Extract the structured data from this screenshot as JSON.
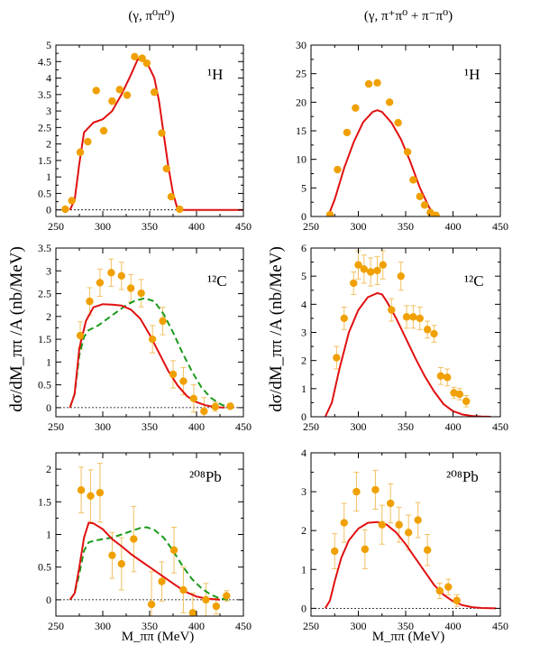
{
  "column_titles": [
    "(γ, π⁰π⁰)",
    "(γ, π⁺π⁰ + π⁻π⁰)"
  ],
  "ylabel": "dσ/dM_ππ /A (nb/MeV)",
  "xlabel": "M_ππ (MeV)",
  "colors": {
    "data": "#f0a000",
    "errorbar": "#f2c060",
    "solid": "#e01010",
    "dashed": "#1a9a1a",
    "zero": "#000000"
  },
  "chart_data": [
    {
      "type": "scatter",
      "column": 0,
      "row": 0,
      "nucleus": "¹H",
      "xlim": [
        250,
        450
      ],
      "ylim": [
        -0.2,
        5.0
      ],
      "xticks": [
        250,
        300,
        350,
        400,
        450
      ],
      "yticks": [
        0,
        0.5,
        1,
        1.5,
        2,
        2.5,
        3,
        3.5,
        4,
        4.5,
        5
      ],
      "points": [
        {
          "x": 260,
          "y": 0.02
        },
        {
          "x": 267,
          "y": 0.28
        },
        {
          "x": 276,
          "y": 1.75
        },
        {
          "x": 284,
          "y": 2.07
        },
        {
          "x": 293,
          "y": 3.62
        },
        {
          "x": 301,
          "y": 2.4
        },
        {
          "x": 310,
          "y": 3.3
        },
        {
          "x": 318,
          "y": 3.65
        },
        {
          "x": 326,
          "y": 3.48
        },
        {
          "x": 334,
          "y": 4.65
        },
        {
          "x": 342,
          "y": 4.6
        },
        {
          "x": 347,
          "y": 4.45
        },
        {
          "x": 355,
          "y": 3.57
        },
        {
          "x": 363,
          "y": 2.33
        },
        {
          "x": 368,
          "y": 1.25
        },
        {
          "x": 373,
          "y": 0.4
        },
        {
          "x": 382,
          "y": 0.02
        }
      ],
      "solid_curve": [
        [
          265,
          0
        ],
        [
          270,
          0.3
        ],
        [
          275,
          1.4
        ],
        [
          280,
          2.35
        ],
        [
          285,
          2.5
        ],
        [
          290,
          2.65
        ],
        [
          300,
          2.75
        ],
        [
          310,
          3.0
        ],
        [
          320,
          3.5
        ],
        [
          330,
          4.1
        ],
        [
          337,
          4.55
        ],
        [
          340,
          4.6
        ],
        [
          345,
          4.55
        ],
        [
          350,
          4.3
        ],
        [
          355,
          4.0
        ],
        [
          360,
          3.3
        ],
        [
          365,
          2.3
        ],
        [
          370,
          1.3
        ],
        [
          375,
          0.5
        ],
        [
          380,
          0
        ],
        [
          450,
          0
        ]
      ]
    },
    {
      "type": "scatter",
      "column": 1,
      "row": 0,
      "nucleus": "¹H",
      "xlim": [
        250,
        450
      ],
      "ylim": [
        0,
        30
      ],
      "xticks": [
        250,
        300,
        350,
        400,
        450
      ],
      "yticks": [
        0,
        5,
        10,
        15,
        20,
        25,
        30
      ],
      "points": [
        {
          "x": 270,
          "y": 0.3
        },
        {
          "x": 278,
          "y": 8.2
        },
        {
          "x": 288,
          "y": 14.7
        },
        {
          "x": 297,
          "y": 19.0
        },
        {
          "x": 311,
          "y": 23.2
        },
        {
          "x": 320,
          "y": 23.4
        },
        {
          "x": 333,
          "y": 20.0
        },
        {
          "x": 342,
          "y": 16.4
        },
        {
          "x": 352,
          "y": 11.3
        },
        {
          "x": 358,
          "y": 6.4
        },
        {
          "x": 365,
          "y": 3.5
        },
        {
          "x": 370,
          "y": 2.0
        },
        {
          "x": 376,
          "y": 0.7
        },
        {
          "x": 382,
          "y": 0.2
        }
      ],
      "solid_curve": [
        [
          268,
          0
        ],
        [
          275,
          3.0
        ],
        [
          285,
          8.5
        ],
        [
          295,
          13.0
        ],
        [
          305,
          16.5
        ],
        [
          315,
          18.3
        ],
        [
          320,
          18.6
        ],
        [
          325,
          18.3
        ],
        [
          335,
          16.4
        ],
        [
          345,
          13.5
        ],
        [
          355,
          9.5
        ],
        [
          365,
          5.0
        ],
        [
          375,
          1.5
        ],
        [
          383,
          0
        ]
      ]
    },
    {
      "type": "scatter",
      "column": 0,
      "row": 1,
      "nucleus": "¹²C",
      "xlim": [
        250,
        450
      ],
      "ylim": [
        -0.2,
        3.5
      ],
      "xticks": [
        250,
        300,
        350,
        400,
        450
      ],
      "yticks": [
        0,
        0.5,
        1,
        1.5,
        2,
        2.5,
        3,
        3.5
      ],
      "points": [
        {
          "x": 276,
          "y": 1.58,
          "err": 0.3
        },
        {
          "x": 286,
          "y": 2.33,
          "err": 0.3
        },
        {
          "x": 297,
          "y": 2.74,
          "err": 0.3
        },
        {
          "x": 309,
          "y": 2.96,
          "err": 0.3
        },
        {
          "x": 320,
          "y": 2.89,
          "err": 0.3
        },
        {
          "x": 330,
          "y": 2.62,
          "err": 0.3
        },
        {
          "x": 341,
          "y": 2.51,
          "err": 0.3
        },
        {
          "x": 353,
          "y": 1.5,
          "err": 0.3
        },
        {
          "x": 364,
          "y": 1.9,
          "err": 0.3
        },
        {
          "x": 375,
          "y": 0.73,
          "err": 0.3
        },
        {
          "x": 386,
          "y": 0.58,
          "err": 0.3
        },
        {
          "x": 397,
          "y": 0.2,
          "err": 0.3
        },
        {
          "x": 408,
          "y": -0.08,
          "err": 0.3
        },
        {
          "x": 420,
          "y": 0.02,
          "err": 0.1
        },
        {
          "x": 436,
          "y": 0.03,
          "err": 0.05
        }
      ],
      "solid_curve": [
        [
          265,
          0
        ],
        [
          270,
          0.3
        ],
        [
          275,
          1.3
        ],
        [
          282,
          1.9
        ],
        [
          290,
          2.2
        ],
        [
          300,
          2.27
        ],
        [
          310,
          2.26
        ],
        [
          320,
          2.24
        ],
        [
          330,
          2.15
        ],
        [
          340,
          1.95
        ],
        [
          350,
          1.6
        ],
        [
          360,
          1.2
        ],
        [
          370,
          0.8
        ],
        [
          380,
          0.48
        ],
        [
          390,
          0.25
        ],
        [
          400,
          0.12
        ],
        [
          410,
          0.05
        ],
        [
          420,
          0.01
        ],
        [
          430,
          0
        ]
      ],
      "dashed_curve": [
        [
          265,
          0
        ],
        [
          270,
          0.3
        ],
        [
          275,
          1.15
        ],
        [
          280,
          1.55
        ],
        [
          285,
          1.7
        ],
        [
          295,
          1.8
        ],
        [
          305,
          1.95
        ],
        [
          315,
          2.1
        ],
        [
          325,
          2.25
        ],
        [
          335,
          2.35
        ],
        [
          345,
          2.4
        ],
        [
          355,
          2.33
        ],
        [
          365,
          2.05
        ],
        [
          375,
          1.65
        ],
        [
          385,
          1.2
        ],
        [
          395,
          0.8
        ],
        [
          405,
          0.45
        ],
        [
          415,
          0.22
        ],
        [
          425,
          0.08
        ],
        [
          432,
          0.02
        ],
        [
          436,
          0
        ]
      ]
    },
    {
      "type": "scatter",
      "column": 1,
      "row": 1,
      "nucleus": "¹²C",
      "xlim": [
        250,
        450
      ],
      "ylim": [
        0,
        6
      ],
      "xticks": [
        250,
        300,
        350,
        400,
        450
      ],
      "yticks": [
        0,
        1,
        2,
        3,
        4,
        5,
        6
      ],
      "points": [
        {
          "x": 277,
          "y": 2.1,
          "err": 0.4
        },
        {
          "x": 285,
          "y": 3.5,
          "err": 0.4
        },
        {
          "x": 295,
          "y": 4.75,
          "err": 0.4
        },
        {
          "x": 300,
          "y": 5.4,
          "err": 0.5
        },
        {
          "x": 306,
          "y": 5.25,
          "err": 0.5
        },
        {
          "x": 313,
          "y": 5.15,
          "err": 0.5
        },
        {
          "x": 320,
          "y": 5.2,
          "err": 0.5
        },
        {
          "x": 326,
          "y": 5.4,
          "err": 0.5
        },
        {
          "x": 335,
          "y": 3.8,
          "err": 0.4
        },
        {
          "x": 345,
          "y": 5.0,
          "err": 0.5
        },
        {
          "x": 351,
          "y": 3.55,
          "err": 0.4
        },
        {
          "x": 358,
          "y": 3.55,
          "err": 0.4
        },
        {
          "x": 365,
          "y": 3.5,
          "err": 0.4
        },
        {
          "x": 373,
          "y": 3.1,
          "err": 0.3
        },
        {
          "x": 380,
          "y": 2.95,
          "err": 0.3
        },
        {
          "x": 387,
          "y": 1.45,
          "err": 0.3
        },
        {
          "x": 394,
          "y": 1.4,
          "err": 0.3
        },
        {
          "x": 401,
          "y": 0.85,
          "err": 0.2
        },
        {
          "x": 407,
          "y": 0.8,
          "err": 0.2
        },
        {
          "x": 414,
          "y": 0.55,
          "err": 0.2
        }
      ],
      "solid_curve": [
        [
          265,
          0
        ],
        [
          272,
          0.5
        ],
        [
          280,
          1.7
        ],
        [
          290,
          3.0
        ],
        [
          300,
          3.8
        ],
        [
          310,
          4.25
        ],
        [
          320,
          4.4
        ],
        [
          325,
          4.35
        ],
        [
          330,
          4.1
        ],
        [
          340,
          3.5
        ],
        [
          350,
          2.8
        ],
        [
          360,
          2.1
        ],
        [
          370,
          1.45
        ],
        [
          380,
          0.9
        ],
        [
          390,
          0.45
        ],
        [
          400,
          0.2
        ],
        [
          410,
          0.08
        ],
        [
          420,
          0.03
        ],
        [
          430,
          0.01
        ],
        [
          440,
          0
        ]
      ]
    },
    {
      "type": "scatter",
      "column": 0,
      "row": 2,
      "nucleus": "²⁰⁸Pb",
      "xlim": [
        250,
        450
      ],
      "ylim": [
        -0.25,
        2.25
      ],
      "xticks": [
        250,
        300,
        350,
        400,
        450
      ],
      "yticks": [
        0,
        0.5,
        1,
        1.5,
        2
      ],
      "points": [
        {
          "x": 277,
          "y": 1.68,
          "err": 0.35
        },
        {
          "x": 287,
          "y": 1.59,
          "err": 0.4
        },
        {
          "x": 297,
          "y": 1.64,
          "err": 0.45
        },
        {
          "x": 310,
          "y": 0.68,
          "err": 0.35
        },
        {
          "x": 320,
          "y": 0.55,
          "err": 0.4
        },
        {
          "x": 333,
          "y": 0.93,
          "err": 0.5
        },
        {
          "x": 352,
          "y": -0.07,
          "err": 0.5
        },
        {
          "x": 363,
          "y": 0.28,
          "err": 0.3
        },
        {
          "x": 376,
          "y": 0.76,
          "err": 0.35
        },
        {
          "x": 386,
          "y": 0.15,
          "err": 0.35
        },
        {
          "x": 396,
          "y": -0.2,
          "err": 0.3
        },
        {
          "x": 410,
          "y": 0.0,
          "err": 0.25
        },
        {
          "x": 421,
          "y": -0.1,
          "err": 0.12
        },
        {
          "x": 432,
          "y": 0.06,
          "err": 0.08
        }
      ],
      "solid_curve": [
        [
          265,
          0
        ],
        [
          270,
          0.1
        ],
        [
          275,
          0.5
        ],
        [
          280,
          0.95
        ],
        [
          285,
          1.18
        ],
        [
          290,
          1.17
        ],
        [
          300,
          1.08
        ],
        [
          310,
          0.93
        ],
        [
          320,
          0.82
        ],
        [
          330,
          0.7
        ],
        [
          340,
          0.6
        ],
        [
          350,
          0.5
        ],
        [
          360,
          0.4
        ],
        [
          370,
          0.3
        ],
        [
          380,
          0.2
        ],
        [
          390,
          0.11
        ],
        [
          400,
          0.05
        ],
        [
          410,
          0.02
        ],
        [
          425,
          0
        ]
      ],
      "dashed_curve": [
        [
          265,
          0
        ],
        [
          270,
          0.1
        ],
        [
          275,
          0.4
        ],
        [
          280,
          0.75
        ],
        [
          285,
          0.88
        ],
        [
          290,
          0.9
        ],
        [
          300,
          0.93
        ],
        [
          310,
          0.95
        ],
        [
          320,
          1.0
        ],
        [
          330,
          1.05
        ],
        [
          340,
          1.1
        ],
        [
          347,
          1.11
        ],
        [
          355,
          1.07
        ],
        [
          365,
          0.95
        ],
        [
          375,
          0.75
        ],
        [
          385,
          0.52
        ],
        [
          395,
          0.32
        ],
        [
          405,
          0.18
        ],
        [
          415,
          0.08
        ],
        [
          425,
          0.02
        ],
        [
          435,
          0
        ]
      ]
    },
    {
      "type": "scatter",
      "column": 1,
      "row": 2,
      "nucleus": "²⁰⁸Pb",
      "xlim": [
        250,
        450
      ],
      "ylim": [
        -0.2,
        4
      ],
      "xticks": [
        250,
        300,
        350,
        400,
        450
      ],
      "yticks": [
        0,
        1,
        2,
        3,
        4
      ],
      "points": [
        {
          "x": 275,
          "y": 1.47,
          "err": 0.45
        },
        {
          "x": 285,
          "y": 2.2,
          "err": 0.5
        },
        {
          "x": 298,
          "y": 3.0,
          "err": 0.5
        },
        {
          "x": 307,
          "y": 1.52,
          "err": 0.5
        },
        {
          "x": 318,
          "y": 3.05,
          "err": 0.5
        },
        {
          "x": 325,
          "y": 2.15,
          "err": 0.5
        },
        {
          "x": 334,
          "y": 2.7,
          "err": 0.5
        },
        {
          "x": 343,
          "y": 2.15,
          "err": 0.45
        },
        {
          "x": 353,
          "y": 1.95,
          "err": 0.45
        },
        {
          "x": 363,
          "y": 2.27,
          "err": 0.45
        },
        {
          "x": 373,
          "y": 1.5,
          "err": 0.4
        },
        {
          "x": 386,
          "y": 0.45,
          "err": 0.2
        },
        {
          "x": 395,
          "y": 0.55,
          "err": 0.2
        },
        {
          "x": 404,
          "y": 0.2,
          "err": 0.15
        }
      ],
      "solid_curve": [
        [
          265,
          0
        ],
        [
          270,
          0.2
        ],
        [
          275,
          0.7
        ],
        [
          282,
          1.3
        ],
        [
          290,
          1.75
        ],
        [
          300,
          2.05
        ],
        [
          310,
          2.2
        ],
        [
          320,
          2.22
        ],
        [
          330,
          2.15
        ],
        [
          340,
          1.95
        ],
        [
          350,
          1.65
        ],
        [
          360,
          1.3
        ],
        [
          370,
          0.95
        ],
        [
          380,
          0.6
        ],
        [
          390,
          0.35
        ],
        [
          400,
          0.18
        ],
        [
          410,
          0.08
        ],
        [
          420,
          0.03
        ],
        [
          430,
          0.01
        ],
        [
          445,
          0
        ]
      ]
    }
  ]
}
